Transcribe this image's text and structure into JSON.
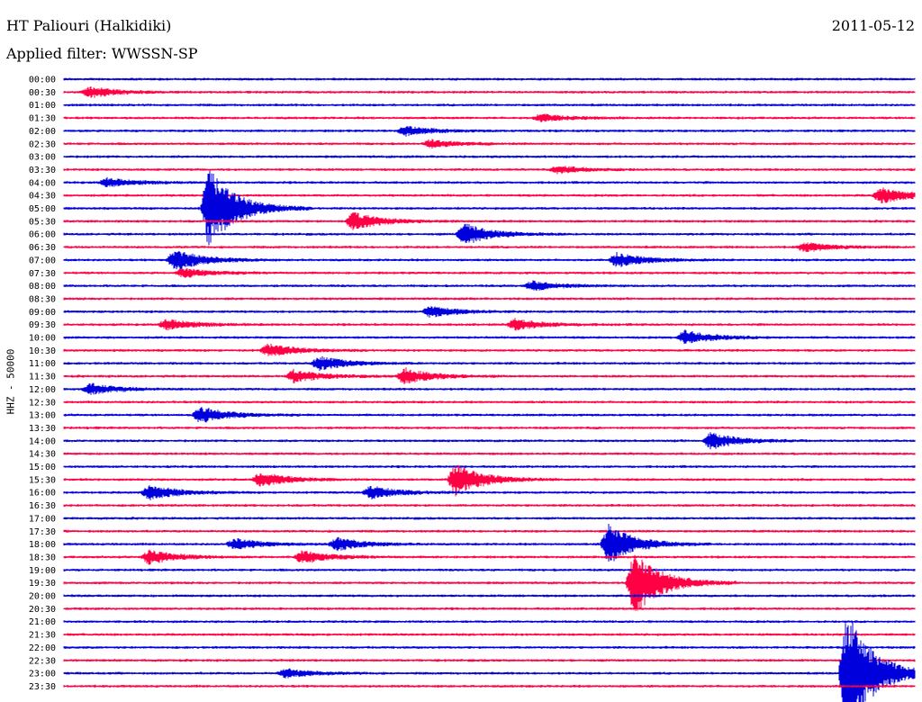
{
  "header": {
    "station": "HT Paliouri (Halkidiki)",
    "date": "2011-05-12",
    "filter": "Applied filter: WWSSN-SP"
  },
  "chart_data": {
    "type": "helicorder",
    "ylabel": "HHZ - 50000",
    "trace_colors": [
      "#0000dd",
      "#ff0044"
    ],
    "line_labels": [
      "00:00",
      "00:30",
      "01:00",
      "01:30",
      "02:00",
      "02:30",
      "03:00",
      "03:30",
      "04:00",
      "04:30",
      "05:00",
      "05:30",
      "06:00",
      "06:30",
      "07:00",
      "07:30",
      "08:00",
      "08:30",
      "09:00",
      "09:30",
      "10:00",
      "10:30",
      "11:00",
      "11:30",
      "12:00",
      "12:30",
      "13:00",
      "13:30",
      "14:00",
      "14:30",
      "15:00",
      "15:30",
      "16:00",
      "16:30",
      "17:00",
      "17:30",
      "18:00",
      "18:30",
      "19:00",
      "19:30",
      "20:00",
      "20:30",
      "21:00",
      "21:30",
      "22:00",
      "22:30",
      "23:00",
      "23:30"
    ],
    "events": [
      {
        "line": "00:30",
        "pos": 0.03,
        "amp": 6
      },
      {
        "line": "01:30",
        "pos": 0.56,
        "amp": 4
      },
      {
        "line": "02:00",
        "pos": 0.4,
        "amp": 5
      },
      {
        "line": "02:30",
        "pos": 0.43,
        "amp": 4
      },
      {
        "line": "03:30",
        "pos": 0.58,
        "amp": 4
      },
      {
        "line": "04:00",
        "pos": 0.05,
        "amp": 5
      },
      {
        "line": "04:30",
        "pos": 0.96,
        "amp": 9
      },
      {
        "line": "05:00",
        "pos": 0.17,
        "amp": 45
      },
      {
        "line": "05:30",
        "pos": 0.34,
        "amp": 10
      },
      {
        "line": "06:00",
        "pos": 0.47,
        "amp": 12
      },
      {
        "line": "06:30",
        "pos": 0.87,
        "amp": 5
      },
      {
        "line": "07:00",
        "pos": 0.13,
        "amp": 12
      },
      {
        "line": "07:00",
        "pos": 0.65,
        "amp": 8
      },
      {
        "line": "07:30",
        "pos": 0.14,
        "amp": 5
      },
      {
        "line": "08:00",
        "pos": 0.55,
        "amp": 5
      },
      {
        "line": "09:00",
        "pos": 0.43,
        "amp": 6
      },
      {
        "line": "09:30",
        "pos": 0.12,
        "amp": 6
      },
      {
        "line": "09:30",
        "pos": 0.53,
        "amp": 6
      },
      {
        "line": "10:00",
        "pos": 0.73,
        "amp": 8
      },
      {
        "line": "10:30",
        "pos": 0.24,
        "amp": 7
      },
      {
        "line": "11:00",
        "pos": 0.3,
        "amp": 8
      },
      {
        "line": "11:30",
        "pos": 0.27,
        "amp": 7
      },
      {
        "line": "11:30",
        "pos": 0.4,
        "amp": 9
      },
      {
        "line": "12:00",
        "pos": 0.03,
        "amp": 6
      },
      {
        "line": "13:00",
        "pos": 0.16,
        "amp": 9
      },
      {
        "line": "14:00",
        "pos": 0.76,
        "amp": 9
      },
      {
        "line": "15:30",
        "pos": 0.23,
        "amp": 8
      },
      {
        "line": "15:30",
        "pos": 0.46,
        "amp": 18
      },
      {
        "line": "16:00",
        "pos": 0.1,
        "amp": 8
      },
      {
        "line": "16:00",
        "pos": 0.36,
        "amp": 7
      },
      {
        "line": "18:00",
        "pos": 0.2,
        "amp": 6
      },
      {
        "line": "18:00",
        "pos": 0.32,
        "amp": 7
      },
      {
        "line": "18:00",
        "pos": 0.64,
        "amp": 22
      },
      {
        "line": "18:30",
        "pos": 0.1,
        "amp": 8
      },
      {
        "line": "18:30",
        "pos": 0.28,
        "amp": 7
      },
      {
        "line": "19:30",
        "pos": 0.67,
        "amp": 36
      },
      {
        "line": "23:00",
        "pos": 0.92,
        "amp": 70
      },
      {
        "line": "23:00",
        "pos": 0.26,
        "amp": 5
      }
    ]
  }
}
